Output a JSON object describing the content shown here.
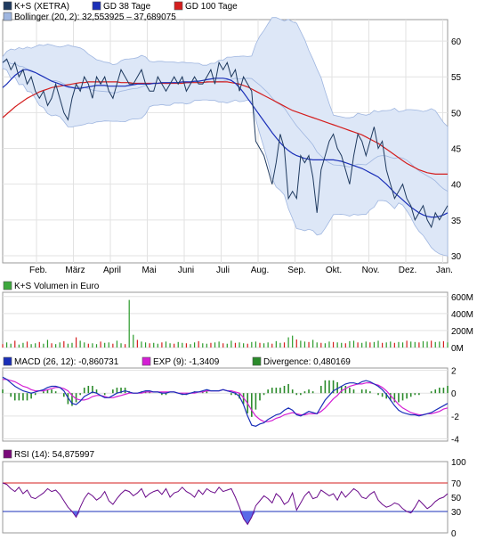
{
  "chart_data": [
    {
      "type": "line",
      "panel": "price",
      "legend": [
        {
          "label": "K+S (XETRA)",
          "color": "#1f3a5f"
        },
        {
          "label": "GD 38 Tage",
          "color": "#1a2fb8"
        },
        {
          "label": "GD 100 Tage",
          "color": "#d41e1e"
        },
        {
          "label": "Bollinger (20, 2): 32,553925 – 37,689075",
          "color": "#9fb6e0"
        }
      ],
      "months": [
        "Feb.",
        "März",
        "April",
        "Mai",
        "Juni",
        "Juli",
        "Aug.",
        "Sep.",
        "Okt.",
        "Nov.",
        "Dez.",
        "Jan."
      ],
      "ylim": [
        29,
        63
      ],
      "yticks": [
        30,
        35,
        40,
        45,
        50,
        55,
        60
      ],
      "series": [
        {
          "name": "K+S (XETRA)",
          "color": "#1f3a5f",
          "values": [
            57,
            57.5,
            56,
            57,
            55,
            56,
            54,
            55,
            53,
            52,
            53,
            51,
            52,
            54,
            52,
            50,
            49,
            52,
            54,
            53,
            55,
            54,
            52,
            55,
            54,
            55,
            53,
            52,
            54,
            56,
            55,
            54,
            54,
            55,
            56,
            54,
            53,
            53,
            55,
            54,
            53,
            54,
            55,
            54,
            55,
            53,
            54,
            55,
            54,
            54,
            55,
            56,
            54,
            57,
            56,
            57,
            55,
            56,
            53,
            55,
            54,
            53,
            46,
            45,
            44,
            42,
            40,
            43,
            47,
            45,
            38,
            39,
            38,
            44,
            43,
            44,
            41,
            36,
            42,
            44,
            46,
            47,
            45,
            44,
            42,
            40,
            44,
            47,
            46,
            44,
            46,
            48,
            45,
            46,
            42,
            40,
            38,
            39,
            40,
            38,
            37,
            35,
            36,
            37,
            35,
            34,
            36,
            35,
            36,
            37
          ]
        },
        {
          "name": "GD 38 Tage",
          "color": "#1a2fb8",
          "values": [
            53.5,
            54,
            54.6,
            55.2,
            55.6,
            56,
            56,
            55.8,
            55.6,
            55.3,
            55,
            54.7,
            54.4,
            54.2,
            54,
            53.8,
            53.6,
            53.5,
            53.4,
            53.4,
            53.5,
            53.6,
            53.7,
            53.8,
            53.8,
            53.8,
            53.7,
            53.7,
            53.7,
            53.7,
            53.7,
            53.8,
            53.9,
            54,
            54,
            54,
            54,
            54.1,
            54.1,
            54.2,
            54.2,
            54.2,
            54.2,
            54.2,
            54.3,
            54.3,
            54.3,
            54.4,
            54.4,
            54.5,
            54.6,
            54.7,
            54.8,
            54.8,
            54.8,
            54.7,
            54.5,
            54.1,
            53.5,
            52.8,
            52,
            51.2,
            50.4,
            49.6,
            48.8,
            48,
            47.2,
            46.5,
            45.8,
            45.2,
            44.7,
            44.3,
            44,
            43.8,
            43.6,
            43.5,
            43.4,
            43.4,
            43.4,
            43.4,
            43.4,
            43.4,
            43.3,
            43.2,
            43,
            42.8,
            42.6,
            42.4,
            42.2,
            41.9,
            41.6,
            41.3,
            41,
            40.5,
            40,
            39.4,
            38.8,
            38.3,
            37.8,
            37.3,
            36.8,
            36.4,
            36,
            35.7,
            35.5,
            35.4,
            35.4,
            35.5,
            35.7,
            36
          ]
        },
        {
          "name": "GD 100 Tage",
          "color": "#d41e1e",
          "values": [
            49.3,
            49.8,
            50.3,
            50.8,
            51.2,
            51.6,
            52,
            52.3,
            52.6,
            52.9,
            53.1,
            53.3,
            53.5,
            53.6,
            53.7,
            53.8,
            53.9,
            54,
            54.1,
            54.2,
            54.2,
            54.3,
            54.3,
            54.3,
            54.3,
            54.3,
            54.3,
            54.3,
            54.3,
            54.2,
            54.2,
            54.2,
            54.1,
            54.1,
            54.1,
            54.1,
            54.1,
            54.1,
            54.1,
            54.1,
            54.1,
            54.1,
            54.1,
            54.1,
            54.1,
            54.2,
            54.2,
            54.2,
            54.2,
            54.2,
            54.3,
            54.3,
            54.3,
            54.3,
            54.3,
            54.3,
            54.2,
            54.1,
            54,
            53.8,
            53.6,
            53.3,
            53,
            52.7,
            52.4,
            52.1,
            51.8,
            51.5,
            51.2,
            50.9,
            50.6,
            50.3,
            50.1,
            49.9,
            49.7,
            49.5,
            49.3,
            49.1,
            48.9,
            48.7,
            48.5,
            48.3,
            48.1,
            47.9,
            47.7,
            47.5,
            47.3,
            47.1,
            46.9,
            46.6,
            46.3,
            46,
            45.7,
            45.3,
            44.9,
            44.5,
            44.1,
            43.7,
            43.3,
            42.9,
            42.6,
            42.3,
            42,
            41.8,
            41.6,
            41.5,
            41.4,
            41.4,
            41.4,
            41.4
          ]
        }
      ]
    },
    {
      "type": "bar",
      "panel": "volume",
      "legend": [
        {
          "label": "K+S Volumen in Euro",
          "color": "#3da83d"
        }
      ],
      "ylim": [
        0,
        650
      ],
      "yticks": [
        {
          "v": 0,
          "label": "0M"
        },
        {
          "v": 200,
          "label": "200M"
        },
        {
          "v": 400,
          "label": "400M"
        },
        {
          "v": 600,
          "label": "600M"
        }
      ],
      "values": [
        40,
        60,
        45,
        80,
        35,
        55,
        70,
        40,
        50,
        65,
        45,
        90,
        50,
        40,
        60,
        75,
        45,
        55,
        120,
        80,
        60,
        45,
        50,
        40,
        70,
        55,
        60,
        45,
        80,
        50,
        40,
        560,
        150,
        90,
        70,
        60,
        50,
        55,
        45,
        60,
        70,
        50,
        45,
        65,
        55,
        50,
        40,
        60,
        75,
        50,
        45,
        55,
        60,
        70,
        50,
        45,
        80,
        55,
        60,
        50,
        45,
        65,
        70,
        55,
        50,
        60,
        45,
        75,
        55,
        60,
        120,
        140,
        95,
        80,
        70,
        65,
        90,
        60,
        55,
        50,
        70,
        65,
        60,
        55,
        50,
        75,
        80,
        60,
        55,
        70,
        60,
        65,
        80,
        55,
        60,
        70,
        55,
        65,
        60,
        80,
        70,
        65,
        60,
        75,
        70,
        80,
        65,
        70,
        75,
        60
      ]
    },
    {
      "type": "line",
      "panel": "macd",
      "legend": [
        {
          "label": "MACD (26, 12): -0,860731",
          "color": "#1a2fb8"
        },
        {
          "label": "EXP (9): -1,3409",
          "color": "#d41ed4"
        },
        {
          "label": "Divergence: 0,480169",
          "color": "#2a8a2a"
        }
      ],
      "ylim": [
        -4.2,
        2.2
      ],
      "yticks": [
        -4,
        -2,
        0,
        2
      ],
      "series": [
        {
          "name": "MACD (26, 12)",
          "color": "#1a2fb8",
          "values": [
            1.4,
            1.2,
            0.9,
            0.6,
            0.4,
            0.2,
            0.1,
            0,
            0.1,
            0.2,
            0.3,
            0.5,
            0.6,
            0.6,
            0.5,
            0.2,
            -0.4,
            -0.9,
            -1,
            -0.7,
            -0.3,
            -0.1,
            0.1,
            0,
            -0.2,
            -0.4,
            -0.4,
            -0.2,
            0,
            0.1,
            0.2,
            0.1,
            0,
            0,
            0.1,
            0.2,
            0.2,
            0.1,
            0.1,
            0,
            0,
            0.1,
            0.1,
            0,
            -0.1,
            -0.1,
            0,
            0.1,
            0.1,
            0.2,
            0.3,
            0.2,
            0.2,
            0.2,
            0.3,
            0.2,
            0.1,
            0,
            -0.3,
            -1,
            -2,
            -2.8,
            -2.9,
            -2.7,
            -2.6,
            -2.3,
            -2.1,
            -1.9,
            -1.8,
            -1.5,
            -1.3,
            -1.5,
            -1.9,
            -2,
            -1.8,
            -1.6,
            -1.7,
            -1.8,
            -1.2,
            -0.6,
            -0.2,
            0.2,
            0.4,
            0.6,
            0.8,
            0.9,
            0.9,
            0.8,
            1,
            1.1,
            1,
            0.8,
            0.6,
            0.3,
            -0.1,
            -0.6,
            -1.1,
            -1.5,
            -1.7,
            -1.8,
            -1.9,
            -1.9,
            -2,
            -1.9,
            -1.8,
            -1.7,
            -1.5,
            -1.3,
            -1.1,
            -0.9
          ]
        },
        {
          "name": "EXP (9)",
          "color": "#d41ed4",
          "values": [
            1.2,
            1.2,
            1.1,
            1,
            0.8,
            0.6,
            0.5,
            0.3,
            0.2,
            0.2,
            0.2,
            0.3,
            0.4,
            0.5,
            0.5,
            0.4,
            0.2,
            -0.2,
            -0.5,
            -0.6,
            -0.6,
            -0.5,
            -0.3,
            -0.2,
            -0.2,
            -0.3,
            -0.4,
            -0.4,
            -0.3,
            -0.2,
            -0.1,
            0,
            0,
            0,
            0,
            0.1,
            0.1,
            0.1,
            0.1,
            0.1,
            0.1,
            0.1,
            0.1,
            0,
            0,
            0,
            0,
            0,
            0.1,
            0.1,
            0.2,
            0.2,
            0.2,
            0.2,
            0.3,
            0.2,
            0.2,
            0.1,
            0,
            -0.4,
            -0.9,
            -1.5,
            -2,
            -2.3,
            -2.5,
            -2.5,
            -2.4,
            -2.2,
            -2.1,
            -1.9,
            -1.8,
            -1.7,
            -1.8,
            -1.9,
            -1.9,
            -1.8,
            -1.8,
            -1.8,
            -1.6,
            -1.3,
            -0.9,
            -0.5,
            -0.2,
            0.2,
            0.4,
            0.6,
            0.7,
            0.8,
            0.8,
            0.9,
            0.9,
            0.8,
            0.7,
            0.5,
            0.2,
            -0.2,
            -0.6,
            -1,
            -1.3,
            -1.5,
            -1.7,
            -1.8,
            -1.9,
            -1.9,
            -1.8,
            -1.8,
            -1.7,
            -1.6,
            -1.4,
            -1.3
          ]
        }
      ]
    },
    {
      "type": "line",
      "panel": "rsi",
      "legend": [
        {
          "label": "RSI (14): 54,875997",
          "color": "#7a0a7a"
        }
      ],
      "ylim": [
        0,
        100
      ],
      "yticks": [
        0,
        30,
        50,
        70,
        100
      ],
      "levels": [
        {
          "v": 70,
          "color": "#d41e1e"
        },
        {
          "v": 30,
          "color": "#1a2fb8"
        }
      ],
      "series": [
        {
          "name": "RSI (14)",
          "color": "#6a0a8a",
          "values": [
            70,
            68,
            62,
            58,
            64,
            55,
            60,
            50,
            48,
            52,
            56,
            62,
            58,
            60,
            54,
            45,
            36,
            30,
            22,
            36,
            48,
            56,
            52,
            46,
            50,
            58,
            45,
            40,
            48,
            55,
            60,
            58,
            52,
            56,
            62,
            50,
            55,
            58,
            60,
            54,
            62,
            50,
            56,
            58,
            64,
            58,
            55,
            50,
            60,
            54,
            62,
            58,
            56,
            64,
            58,
            60,
            62,
            50,
            36,
            20,
            12,
            22,
            38,
            45,
            52,
            48,
            42,
            55,
            50,
            40,
            44,
            56,
            32,
            42,
            52,
            58,
            48,
            50,
            60,
            56,
            52,
            55,
            46,
            58,
            50,
            56,
            62,
            58,
            50,
            48,
            54,
            58,
            46,
            40,
            36,
            38,
            42,
            40,
            34,
            30,
            28,
            36,
            46,
            40,
            34,
            38,
            44,
            48,
            50,
            55
          ]
        }
      ]
    }
  ]
}
